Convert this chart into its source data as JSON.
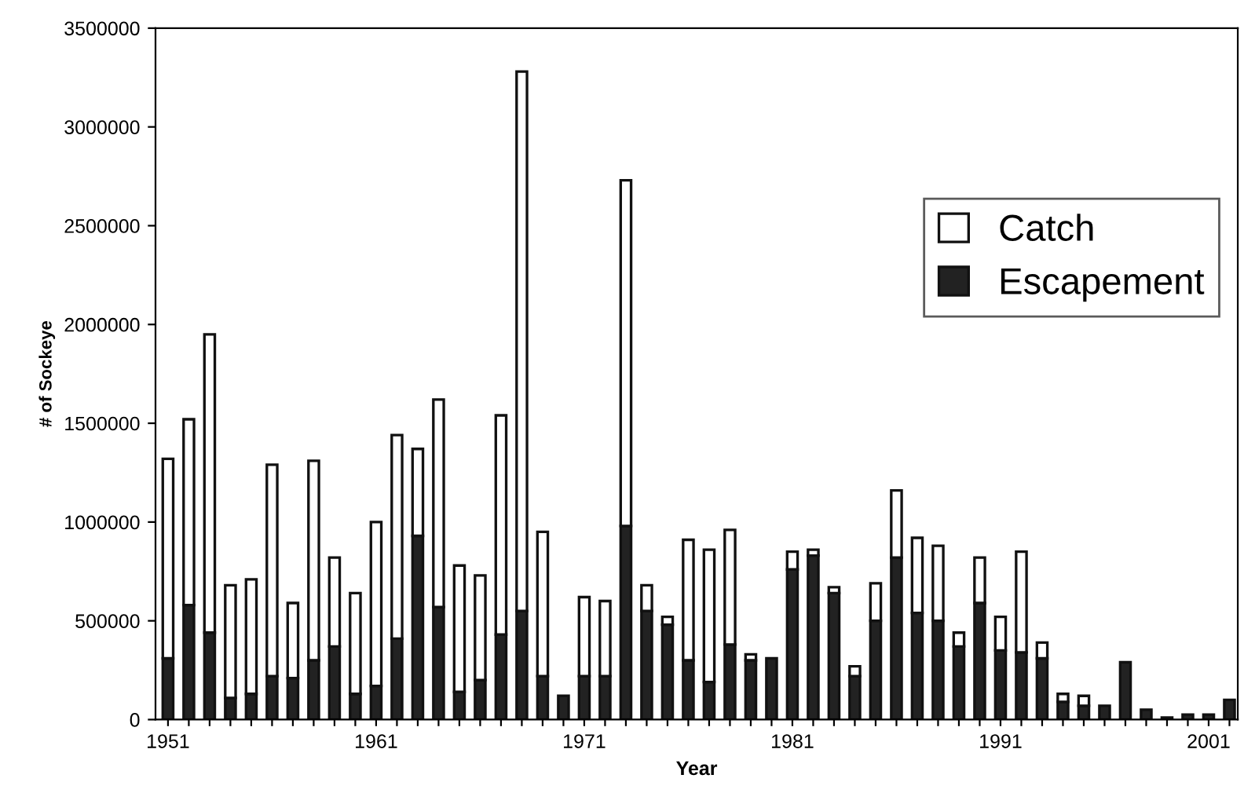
{
  "chart_data": {
    "type": "bar",
    "stacked": true,
    "xlabel": "Year",
    "ylabel": "# of Sockeye",
    "categories": [
      "1951",
      null,
      null,
      null,
      null,
      null,
      null,
      null,
      null,
      null,
      "1961",
      null,
      null,
      null,
      null,
      null,
      null,
      null,
      null,
      null,
      "1971",
      null,
      null,
      null,
      null,
      null,
      null,
      null,
      null,
      null,
      "1981",
      null,
      null,
      null,
      null,
      null,
      null,
      null,
      null,
      null,
      "1991",
      null,
      null,
      null,
      null,
      null,
      null,
      null,
      null,
      null,
      "2001",
      null
    ],
    "series": [
      {
        "name": "Escapement",
        "color": "#222222",
        "values": [
          310000,
          580000,
          440000,
          110000,
          130000,
          220000,
          210000,
          300000,
          370000,
          130000,
          170000,
          410000,
          930000,
          570000,
          140000,
          200000,
          430000,
          550000,
          220000,
          120000,
          220000,
          220000,
          980000,
          550000,
          480000,
          300000,
          190000,
          380000,
          300000,
          310000,
          760000,
          830000,
          640000,
          220000,
          500000,
          820000,
          540000,
          500000,
          370000,
          590000,
          350000,
          340000,
          310000,
          90000,
          70000,
          70000,
          290000,
          50000,
          10000,
          25000,
          25000,
          100000
        ]
      },
      {
        "name": "Catch",
        "color": "#ffffff",
        "values": [
          1010000,
          940000,
          1510000,
          570000,
          580000,
          1070000,
          380000,
          1010000,
          450000,
          510000,
          830000,
          1030000,
          440000,
          1050000,
          640000,
          530000,
          1110000,
          2730000,
          730000,
          null,
          400000,
          380000,
          1750000,
          130000,
          40000,
          610000,
          670000,
          580000,
          30000,
          null,
          90000,
          30000,
          30000,
          50000,
          190000,
          340000,
          380000,
          380000,
          70000,
          230000,
          170000,
          510000,
          80000,
          40000,
          50000,
          null,
          null,
          null,
          null,
          null,
          null,
          null
        ]
      }
    ],
    "ylim": [
      0,
      3500000
    ],
    "yticks": [
      0,
      500000,
      1000000,
      1500000,
      2000000,
      2500000,
      3000000,
      3500000
    ],
    "legend": "top right",
    "grid": false
  }
}
